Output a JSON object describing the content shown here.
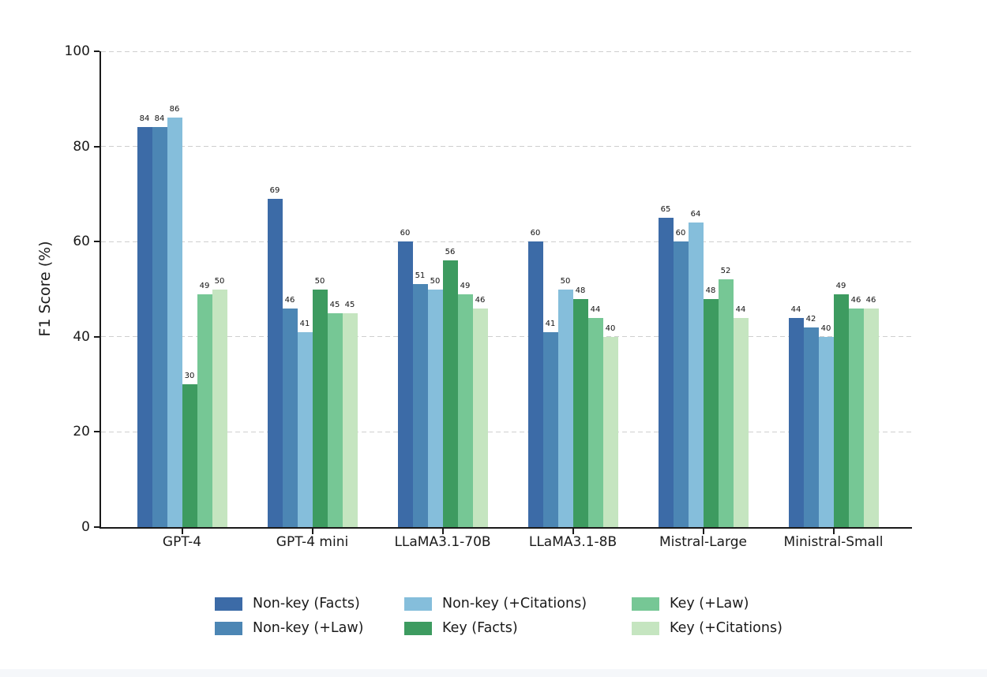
{
  "chart_data": {
    "type": "bar",
    "title": "",
    "xlabel": "",
    "ylabel": "F1 Score (%)",
    "ylim": [
      0,
      100
    ],
    "yticks": [
      0,
      20,
      40,
      60,
      80,
      100
    ],
    "grid": "horizontal-dashed",
    "bar_value_labels": true,
    "legend_position": "bottom-center",
    "legend_columns": 3,
    "categories": [
      "GPT-4",
      "GPT-4 mini",
      "LLaMA3.1-70B",
      "LLaMA3.1-8B",
      "Mistral-Large",
      "Ministral-Small"
    ],
    "series": [
      {
        "name": "Non-key (Facts)",
        "color": "#3c6ba7",
        "values": [
          84,
          69,
          60,
          60,
          65,
          44
        ]
      },
      {
        "name": "Non-key (+Law)",
        "color": "#4c86b4",
        "values": [
          84,
          46,
          51,
          41,
          60,
          42
        ]
      },
      {
        "name": "Non-key (+Citations)",
        "color": "#85bedb",
        "values": [
          86,
          41,
          50,
          50,
          64,
          40
        ]
      },
      {
        "name": "Key (Facts)",
        "color": "#3d9b60",
        "values": [
          30,
          50,
          56,
          48,
          48,
          49
        ]
      },
      {
        "name": "Key (+Law)",
        "color": "#76c795",
        "values": [
          49,
          45,
          49,
          44,
          52,
          46
        ]
      },
      {
        "name": "Key (+Citations)",
        "color": "#c5e5c0",
        "values": [
          50,
          45,
          46,
          40,
          44,
          46
        ]
      }
    ],
    "colors": {
      "axis": "#1a1a1a",
      "gridline": "#cfcfcf",
      "text": "#1a1a1a"
    }
  }
}
